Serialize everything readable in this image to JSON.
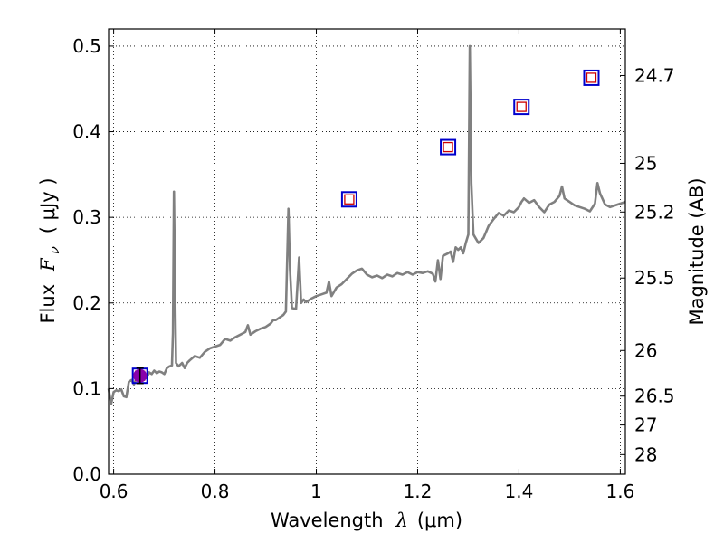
{
  "chart_data": {
    "type": "line",
    "xlabel_text": "Wavelength",
    "xlabel_symbol": "λ",
    "xlabel_unit": "(μm)",
    "ylabel_text": "Flux",
    "ylabel_symbol": "F",
    "ylabel_subscript": "ν",
    "ylabel_unit": "( μJy )",
    "y2label": "Magnitude (AB)",
    "xlim": [
      0.59,
      1.61
    ],
    "ylim": [
      0.0,
      0.52
    ],
    "grid": true,
    "x_ticks": [
      {
        "value": 0.6,
        "label": "0.6"
      },
      {
        "value": 0.8,
        "label": "0.8"
      },
      {
        "value": 1.0,
        "label": "1"
      },
      {
        "value": 1.2,
        "label": "1.2"
      },
      {
        "value": 1.4,
        "label": "1.4"
      },
      {
        "value": 1.6,
        "label": "1.6"
      }
    ],
    "y_ticks": [
      {
        "value": 0.0,
        "label": "0.0"
      },
      {
        "value": 0.1,
        "label": "0.1"
      },
      {
        "value": 0.2,
        "label": "0.2"
      },
      {
        "value": 0.3,
        "label": "0.3"
      },
      {
        "value": 0.4,
        "label": "0.4"
      },
      {
        "value": 0.5,
        "label": "0.5"
      }
    ],
    "y2_ticks": [
      {
        "flux": 0.4656,
        "label": "24.7"
      },
      {
        "flux": 0.3631,
        "label": "25"
      },
      {
        "flux": 0.3062,
        "label": "25.2"
      },
      {
        "flux": 0.2291,
        "label": "25.5"
      },
      {
        "flux": 0.1445,
        "label": "26"
      },
      {
        "flux": 0.0912,
        "label": "26.5"
      },
      {
        "flux": 0.0575,
        "label": "27"
      },
      {
        "flux": 0.0229,
        "label": "28"
      }
    ],
    "series": [
      {
        "type": "line",
        "color": "#808080",
        "points": [
          [
            0.59,
            0.1
          ],
          [
            0.595,
            0.082
          ],
          [
            0.6,
            0.096
          ],
          [
            0.605,
            0.098
          ],
          [
            0.61,
            0.097
          ],
          [
            0.615,
            0.099
          ],
          [
            0.62,
            0.091
          ],
          [
            0.625,
            0.09
          ],
          [
            0.63,
            0.108
          ],
          [
            0.635,
            0.11
          ],
          [
            0.64,
            0.105
          ],
          [
            0.645,
            0.112
          ],
          [
            0.65,
            0.114
          ],
          [
            0.655,
            0.116
          ],
          [
            0.66,
            0.118
          ],
          [
            0.665,
            0.112
          ],
          [
            0.67,
            0.119
          ],
          [
            0.675,
            0.117
          ],
          [
            0.68,
            0.121
          ],
          [
            0.685,
            0.118
          ],
          [
            0.69,
            0.12
          ],
          [
            0.695,
            0.119
          ],
          [
            0.7,
            0.117
          ],
          [
            0.705,
            0.124
          ],
          [
            0.71,
            0.126
          ],
          [
            0.715,
            0.127
          ],
          [
            0.717,
            0.165
          ],
          [
            0.719,
            0.33
          ],
          [
            0.721,
            0.23
          ],
          [
            0.723,
            0.13
          ],
          [
            0.728,
            0.126
          ],
          [
            0.735,
            0.13
          ],
          [
            0.74,
            0.124
          ],
          [
            0.745,
            0.13
          ],
          [
            0.75,
            0.133
          ],
          [
            0.76,
            0.138
          ],
          [
            0.77,
            0.136
          ],
          [
            0.78,
            0.143
          ],
          [
            0.79,
            0.147
          ],
          [
            0.8,
            0.149
          ],
          [
            0.81,
            0.151
          ],
          [
            0.82,
            0.158
          ],
          [
            0.83,
            0.156
          ],
          [
            0.84,
            0.16
          ],
          [
            0.85,
            0.163
          ],
          [
            0.86,
            0.166
          ],
          [
            0.865,
            0.174
          ],
          [
            0.87,
            0.163
          ],
          [
            0.88,
            0.167
          ],
          [
            0.89,
            0.17
          ],
          [
            0.9,
            0.172
          ],
          [
            0.91,
            0.176
          ],
          [
            0.915,
            0.18
          ],
          [
            0.92,
            0.18
          ],
          [
            0.93,
            0.184
          ],
          [
            0.935,
            0.186
          ],
          [
            0.94,
            0.19
          ],
          [
            0.945,
            0.31
          ],
          [
            0.948,
            0.24
          ],
          [
            0.952,
            0.194
          ],
          [
            0.96,
            0.193
          ],
          [
            0.966,
            0.253
          ],
          [
            0.97,
            0.2
          ],
          [
            0.975,
            0.204
          ],
          [
            0.98,
            0.201
          ],
          [
            0.99,
            0.205
          ],
          [
            1.0,
            0.208
          ],
          [
            1.01,
            0.21
          ],
          [
            1.02,
            0.212
          ],
          [
            1.025,
            0.225
          ],
          [
            1.03,
            0.208
          ],
          [
            1.04,
            0.218
          ],
          [
            1.05,
            0.222
          ],
          [
            1.06,
            0.228
          ],
          [
            1.07,
            0.234
          ],
          [
            1.08,
            0.238
          ],
          [
            1.09,
            0.24
          ],
          [
            1.1,
            0.233
          ],
          [
            1.11,
            0.23
          ],
          [
            1.12,
            0.232
          ],
          [
            1.13,
            0.229
          ],
          [
            1.14,
            0.233
          ],
          [
            1.15,
            0.231
          ],
          [
            1.16,
            0.235
          ],
          [
            1.17,
            0.233
          ],
          [
            1.18,
            0.236
          ],
          [
            1.19,
            0.233
          ],
          [
            1.2,
            0.236
          ],
          [
            1.21,
            0.235
          ],
          [
            1.22,
            0.237
          ],
          [
            1.23,
            0.234
          ],
          [
            1.235,
            0.225
          ],
          [
            1.24,
            0.25
          ],
          [
            1.245,
            0.228
          ],
          [
            1.25,
            0.255
          ],
          [
            1.26,
            0.258
          ],
          [
            1.265,
            0.26
          ],
          [
            1.27,
            0.248
          ],
          [
            1.275,
            0.265
          ],
          [
            1.28,
            0.262
          ],
          [
            1.285,
            0.265
          ],
          [
            1.29,
            0.258
          ],
          [
            1.295,
            0.27
          ],
          [
            1.3,
            0.28
          ],
          [
            1.303,
            0.5
          ],
          [
            1.306,
            0.34
          ],
          [
            1.31,
            0.28
          ],
          [
            1.315,
            0.275
          ],
          [
            1.32,
            0.27
          ],
          [
            1.33,
            0.276
          ],
          [
            1.34,
            0.29
          ],
          [
            1.35,
            0.298
          ],
          [
            1.36,
            0.305
          ],
          [
            1.37,
            0.302
          ],
          [
            1.38,
            0.308
          ],
          [
            1.39,
            0.306
          ],
          [
            1.4,
            0.312
          ],
          [
            1.405,
            0.318
          ],
          [
            1.41,
            0.322
          ],
          [
            1.42,
            0.317
          ],
          [
            1.43,
            0.32
          ],
          [
            1.44,
            0.312
          ],
          [
            1.45,
            0.306
          ],
          [
            1.46,
            0.315
          ],
          [
            1.47,
            0.318
          ],
          [
            1.48,
            0.325
          ],
          [
            1.485,
            0.336
          ],
          [
            1.49,
            0.322
          ],
          [
            1.5,
            0.318
          ],
          [
            1.51,
            0.314
          ],
          [
            1.52,
            0.312
          ],
          [
            1.53,
            0.31
          ],
          [
            1.54,
            0.307
          ],
          [
            1.55,
            0.316
          ],
          [
            1.555,
            0.34
          ],
          [
            1.56,
            0.328
          ],
          [
            1.57,
            0.315
          ],
          [
            1.58,
            0.312
          ],
          [
            1.59,
            0.314
          ],
          [
            1.6,
            0.316
          ],
          [
            1.61,
            0.318
          ]
        ]
      },
      {
        "type": "square-markers",
        "outer_color": "#0000cc",
        "inner_color": "#cc0000",
        "points": [
          [
            0.652,
            0.115
          ],
          [
            1.065,
            0.321
          ],
          [
            1.26,
            0.382
          ],
          [
            1.405,
            0.429
          ],
          [
            1.543,
            0.463
          ]
        ]
      },
      {
        "type": "errorbar-point",
        "color": "#8800aa",
        "points": [
          [
            0.652,
            0.115,
            0.009
          ]
        ]
      }
    ]
  }
}
